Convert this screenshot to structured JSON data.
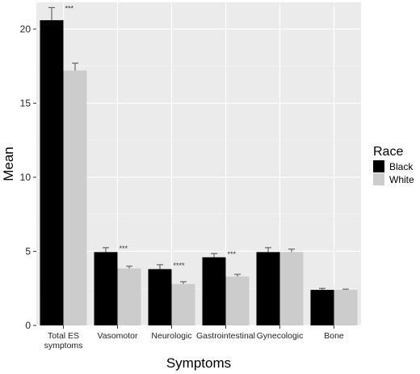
{
  "chart_data": {
    "type": "bar",
    "xlabel": "Symptoms",
    "ylabel": "Mean",
    "ylim": [
      0,
      21.8
    ],
    "yticks": [
      0,
      5,
      10,
      15,
      20
    ],
    "grid": true,
    "legend": {
      "title": "Race",
      "position": "right"
    },
    "categories": [
      [
        "Total ES",
        "symptoms"
      ],
      [
        "Vasomotor"
      ],
      [
        "Neurologic"
      ],
      [
        "Gastrointestinal"
      ],
      [
        "Gynecologic"
      ],
      [
        "Bone"
      ]
    ],
    "series": [
      {
        "name": "Black",
        "color": "#000000",
        "values": [
          20.6,
          4.95,
          3.8,
          4.6,
          4.95,
          2.4
        ],
        "errors": [
          0.85,
          0.3,
          0.3,
          0.25,
          0.3,
          0.1
        ]
      },
      {
        "name": "White",
        "color": "#cccccc",
        "values": [
          17.2,
          3.85,
          2.8,
          3.3,
          4.95,
          2.4
        ],
        "errors": [
          0.5,
          0.15,
          0.15,
          0.15,
          0.2,
          0.05
        ]
      }
    ],
    "annotations": [
      "***",
      "***",
      "****",
      "***",
      "",
      ""
    ]
  },
  "colors": {
    "panel": "#ebebeb",
    "grid_major": "#ffffff",
    "grid_minor": "#f5f5f5",
    "error_bar": "#666666"
  }
}
